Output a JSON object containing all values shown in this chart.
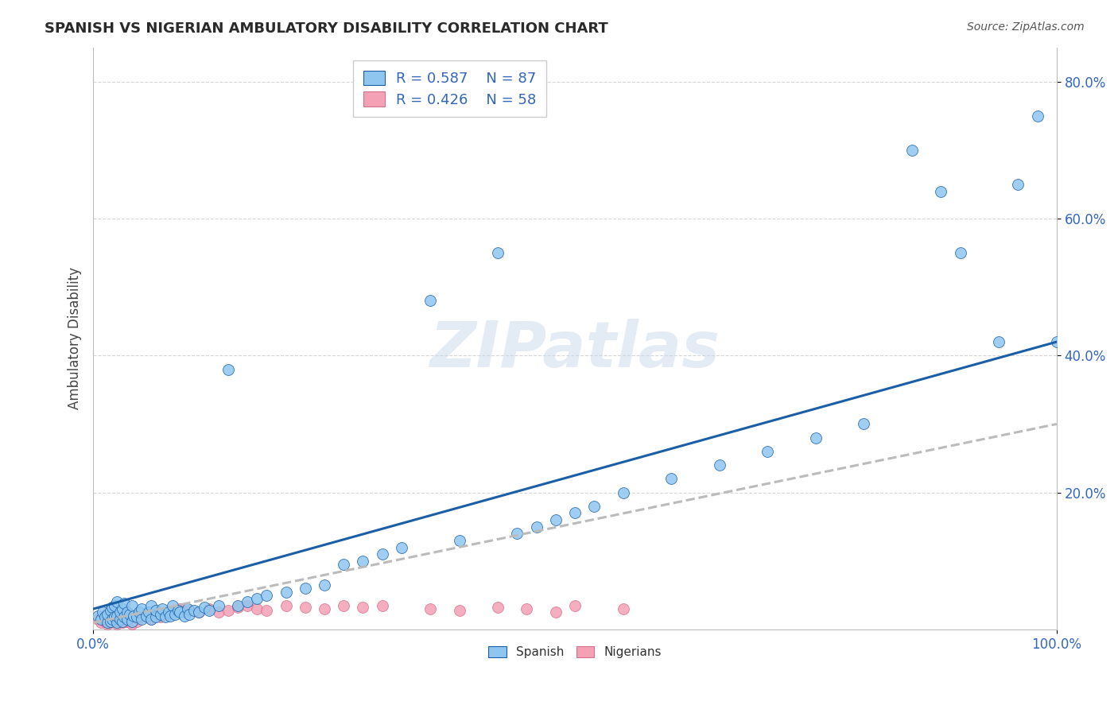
{
  "title": "SPANISH VS NIGERIAN AMBULATORY DISABILITY CORRELATION CHART",
  "source": "Source: ZipAtlas.com",
  "ylabel": "Ambulatory Disability",
  "xlim": [
    0.0,
    1.0
  ],
  "ylim": [
    0.0,
    0.85
  ],
  "xtick_positions": [
    0.0,
    1.0
  ],
  "xticklabels": [
    "0.0%",
    "100.0%"
  ],
  "ytick_positions": [
    0.2,
    0.4,
    0.6,
    0.8
  ],
  "yticklabels": [
    "20.0%",
    "40.0%",
    "60.0%",
    "80.0%"
  ],
  "spanish_color": "#8EC6F0",
  "nigerian_color": "#F4A0B5",
  "trend_spanish_color": "#1A5EA8",
  "trend_nigerian_color": "#BBBBBB",
  "nigerian_edge_color": "#D4708A",
  "R_spanish": 0.587,
  "N_spanish": 87,
  "R_nigerian": 0.426,
  "N_nigerian": 58,
  "legend_label_spanish": "Spanish",
  "legend_label_nigerian": "Nigerians",
  "watermark": "ZIPatlas",
  "spanish_x": [
    0.005,
    0.008,
    0.01,
    0.012,
    0.015,
    0.015,
    0.018,
    0.018,
    0.02,
    0.02,
    0.022,
    0.022,
    0.025,
    0.025,
    0.025,
    0.028,
    0.028,
    0.03,
    0.03,
    0.032,
    0.032,
    0.035,
    0.035,
    0.038,
    0.04,
    0.04,
    0.042,
    0.045,
    0.048,
    0.05,
    0.05,
    0.055,
    0.058,
    0.06,
    0.06,
    0.065,
    0.065,
    0.07,
    0.072,
    0.075,
    0.078,
    0.08,
    0.082,
    0.085,
    0.088,
    0.09,
    0.095,
    0.098,
    0.1,
    0.105,
    0.11,
    0.115,
    0.12,
    0.13,
    0.14,
    0.15,
    0.16,
    0.17,
    0.18,
    0.2,
    0.22,
    0.24,
    0.26,
    0.28,
    0.3,
    0.32,
    0.35,
    0.38,
    0.42,
    0.44,
    0.46,
    0.48,
    0.5,
    0.52,
    0.55,
    0.6,
    0.65,
    0.7,
    0.75,
    0.8,
    0.85,
    0.88,
    0.9,
    0.94,
    0.96,
    0.98,
    1.0
  ],
  "spanish_y": [
    0.02,
    0.015,
    0.025,
    0.018,
    0.01,
    0.022,
    0.012,
    0.028,
    0.015,
    0.032,
    0.018,
    0.035,
    0.01,
    0.02,
    0.04,
    0.015,
    0.025,
    0.012,
    0.03,
    0.018,
    0.038,
    0.015,
    0.025,
    0.022,
    0.012,
    0.035,
    0.02,
    0.018,
    0.025,
    0.015,
    0.03,
    0.02,
    0.025,
    0.015,
    0.035,
    0.018,
    0.028,
    0.022,
    0.03,
    0.018,
    0.025,
    0.02,
    0.035,
    0.022,
    0.028,
    0.025,
    0.02,
    0.03,
    0.022,
    0.028,
    0.025,
    0.032,
    0.028,
    0.035,
    0.38,
    0.035,
    0.04,
    0.045,
    0.05,
    0.055,
    0.06,
    0.065,
    0.095,
    0.1,
    0.11,
    0.12,
    0.48,
    0.13,
    0.55,
    0.14,
    0.15,
    0.16,
    0.17,
    0.18,
    0.2,
    0.22,
    0.24,
    0.26,
    0.28,
    0.3,
    0.7,
    0.64,
    0.55,
    0.42,
    0.65,
    0.75,
    0.42
  ],
  "nigerian_x": [
    0.005,
    0.008,
    0.01,
    0.012,
    0.015,
    0.015,
    0.018,
    0.018,
    0.02,
    0.02,
    0.022,
    0.025,
    0.025,
    0.028,
    0.028,
    0.03,
    0.03,
    0.032,
    0.035,
    0.035,
    0.038,
    0.04,
    0.04,
    0.042,
    0.045,
    0.048,
    0.05,
    0.055,
    0.06,
    0.065,
    0.07,
    0.075,
    0.08,
    0.085,
    0.09,
    0.095,
    0.1,
    0.11,
    0.12,
    0.13,
    0.14,
    0.15,
    0.16,
    0.17,
    0.18,
    0.2,
    0.22,
    0.24,
    0.26,
    0.28,
    0.3,
    0.35,
    0.38,
    0.42,
    0.45,
    0.48,
    0.5,
    0.55
  ],
  "nigerian_y": [
    0.015,
    0.01,
    0.02,
    0.012,
    0.008,
    0.018,
    0.01,
    0.022,
    0.012,
    0.025,
    0.015,
    0.008,
    0.018,
    0.012,
    0.02,
    0.01,
    0.025,
    0.015,
    0.012,
    0.022,
    0.01,
    0.018,
    0.008,
    0.015,
    0.012,
    0.02,
    0.018,
    0.022,
    0.015,
    0.02,
    0.018,
    0.022,
    0.025,
    0.028,
    0.03,
    0.025,
    0.028,
    0.025,
    0.03,
    0.025,
    0.028,
    0.032,
    0.035,
    0.03,
    0.028,
    0.035,
    0.032,
    0.03,
    0.035,
    0.032,
    0.035,
    0.03,
    0.028,
    0.032,
    0.03,
    0.025,
    0.035,
    0.03
  ],
  "trend_spanish_x0": 0.0,
  "trend_spanish_y0": 0.03,
  "trend_spanish_x1": 1.0,
  "trend_spanish_y1": 0.42,
  "trend_nigerian_x0": 0.0,
  "trend_nigerian_y0": 0.01,
  "trend_nigerian_x1": 1.0,
  "trend_nigerian_y1": 0.3
}
